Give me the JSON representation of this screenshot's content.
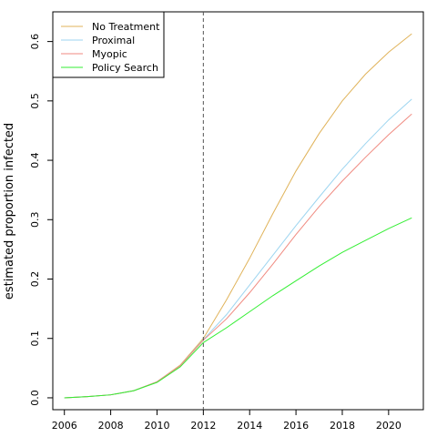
{
  "chart_data": {
    "type": "line",
    "title": "",
    "xlabel": "",
    "ylabel": "estimated proportion infected",
    "xlim": [
      2005.5,
      2021.5
    ],
    "ylim": [
      -0.02,
      0.65
    ],
    "x_ticks": [
      2006,
      2008,
      2010,
      2012,
      2014,
      2016,
      2018,
      2020
    ],
    "y_ticks": [
      0.0,
      0.1,
      0.2,
      0.3,
      0.4,
      0.5,
      0.6
    ],
    "y_tick_labels": [
      "0.0",
      "0.1",
      "0.2",
      "0.3",
      "0.4",
      "0.5",
      "0.6"
    ],
    "vline": {
      "x": 2012,
      "style": "dashed",
      "color": "#555555"
    },
    "legend_position": "top-left",
    "grid": false,
    "x": [
      2006,
      2007,
      2008,
      2009,
      2010,
      2011,
      2012,
      2013,
      2014,
      2015,
      2016,
      2017,
      2018,
      2019,
      2020,
      2021
    ],
    "series": [
      {
        "name": "No Treatment",
        "color": "#E0B35A",
        "values": [
          0.0,
          0.002,
          0.005,
          0.012,
          0.027,
          0.055,
          0.1,
          0.165,
          0.235,
          0.31,
          0.382,
          0.445,
          0.5,
          0.545,
          0.582,
          0.613
        ]
      },
      {
        "name": "Proximal",
        "color": "#9DD5F0",
        "values": [
          0.0,
          0.002,
          0.005,
          0.012,
          0.027,
          0.054,
          0.098,
          0.14,
          0.19,
          0.24,
          0.29,
          0.338,
          0.385,
          0.428,
          0.468,
          0.503
        ]
      },
      {
        "name": "Myopic",
        "color": "#F08A80",
        "values": [
          0.0,
          0.002,
          0.005,
          0.012,
          0.027,
          0.054,
          0.097,
          0.133,
          0.177,
          0.225,
          0.275,
          0.322,
          0.365,
          0.405,
          0.443,
          0.478
        ]
      },
      {
        "name": "Policy Search",
        "color": "#33EE33",
        "values": [
          0.0,
          0.002,
          0.005,
          0.012,
          0.026,
          0.052,
          0.093,
          0.118,
          0.145,
          0.172,
          0.197,
          0.222,
          0.245,
          0.265,
          0.285,
          0.303
        ]
      }
    ]
  }
}
